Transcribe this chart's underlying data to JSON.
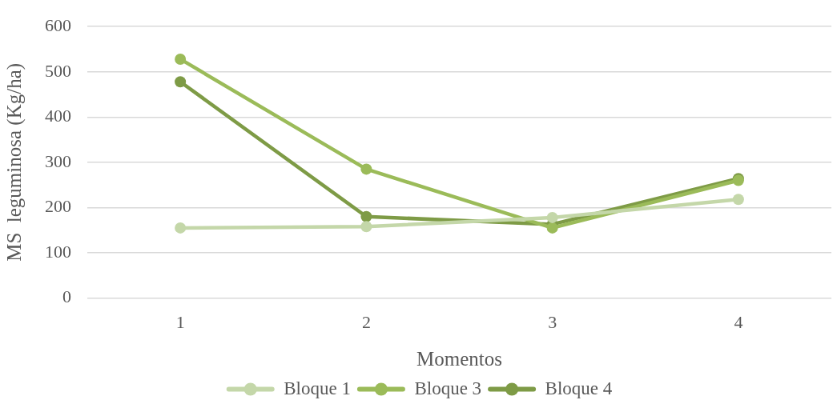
{
  "chart_data": {
    "type": "line",
    "xlabel": "Momentos",
    "ylabel": "MS  leguminosa (Kg/ha)",
    "categories": [
      "1",
      "2",
      "3",
      "4"
    ],
    "series": [
      {
        "name": "Bloque 1",
        "color": "#c4d7a9",
        "values": [
          155,
          158,
          178,
          218
        ]
      },
      {
        "name": "Bloque 3",
        "color": "#9bbb59",
        "values": [
          528,
          285,
          155,
          260
        ]
      },
      {
        "name": "Bloque 4",
        "color": "#7e9b46",
        "values": [
          478,
          180,
          163,
          264
        ]
      }
    ],
    "ylim": [
      0,
      600
    ],
    "yticks": [
      0,
      100,
      200,
      300,
      400,
      500,
      600
    ],
    "grid": "y",
    "legend": "bottom",
    "marker": "circle",
    "line_style": "solid"
  }
}
